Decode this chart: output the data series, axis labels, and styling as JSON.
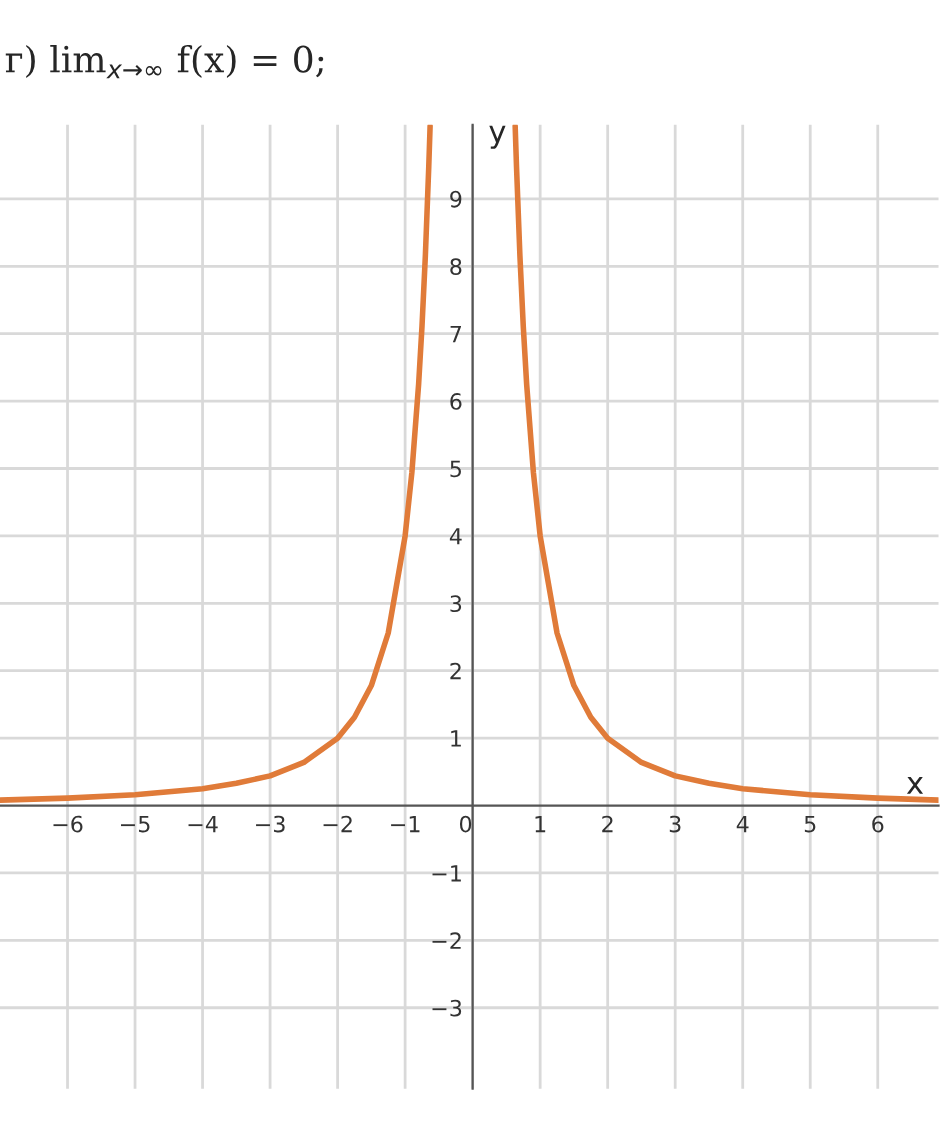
{
  "chart_data": {
    "type": "line",
    "title": "г) lim$_{x→∞}$ f(x) = 0;",
    "xlabel": "x",
    "ylabel": "y",
    "series": [
      {
        "color": "#e07b39",
        "x": [
          -7,
          -6,
          -5,
          -4,
          -3.5,
          -3,
          -2.5,
          -2,
          -1.75,
          -1.5,
          -1.25,
          -1,
          -0.9,
          -0.8,
          -0.75,
          -0.7,
          -0.65,
          -0.63,
          0,
          0.63,
          0.65,
          0.7,
          0.75,
          0.8,
          0.9,
          1,
          1.25,
          1.5,
          1.75,
          2,
          2.5,
          3,
          3.5,
          4,
          5,
          6,
          6.9
        ],
        "values": [
          0.08,
          0.11,
          0.16,
          0.25,
          0.33,
          0.44,
          0.64,
          1,
          1.31,
          1.78,
          2.56,
          4,
          4.94,
          6.25,
          7.11,
          8.16,
          9.47,
          10.08,
          null,
          10.08,
          9.47,
          8.16,
          7.11,
          6.25,
          4.94,
          4,
          2.56,
          1.78,
          1.31,
          1,
          0.64,
          0.44,
          0.33,
          0.25,
          0.16,
          0.11,
          0.08
        ]
      }
    ],
    "xlim": [
      -7,
      6.9
    ],
    "ylim": [
      -4.2,
      10.1
    ],
    "xticks": [
      -6,
      -5,
      -4,
      -3,
      -2,
      -1,
      0,
      1,
      2,
      3,
      4,
      5,
      6
    ],
    "yticks": [
      -3,
      -2,
      -1,
      1,
      2,
      3,
      4,
      5,
      6,
      7,
      8,
      9
    ],
    "grid": true,
    "line_style": "solid",
    "marker": "none"
  }
}
